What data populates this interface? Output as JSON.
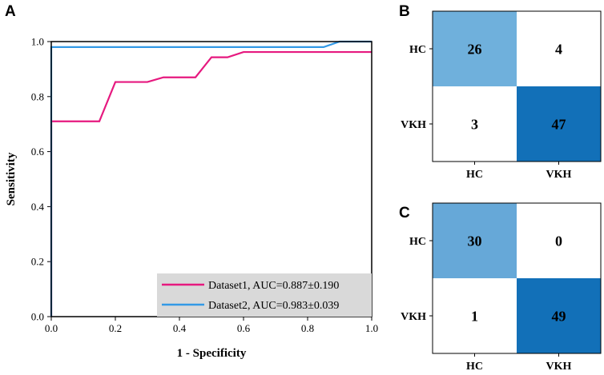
{
  "panels": {
    "a": "A",
    "b": "B",
    "c": "C"
  },
  "chart_data": [
    {
      "id": "roc",
      "type": "line",
      "title": "",
      "xlabel": "1 - Specificity",
      "ylabel": "Sensitivity",
      "xlim": [
        0,
        1
      ],
      "ylim": [
        0,
        1
      ],
      "xticks": [
        "0.0",
        "0.2",
        "0.4",
        "0.6",
        "0.8",
        "1.0"
      ],
      "yticks": [
        "0.0",
        "0.2",
        "0.4",
        "0.6",
        "0.8",
        "1.0"
      ],
      "legend_position": "bottom-right",
      "series": [
        {
          "name": "Dataset1, AUC=0.887±0.190",
          "color": "#e6197f",
          "points": [
            [
              0,
              0
            ],
            [
              0,
              0.71
            ],
            [
              0.15,
              0.71
            ],
            [
              0.2,
              0.853
            ],
            [
              0.3,
              0.853
            ],
            [
              0.35,
              0.87
            ],
            [
              0.45,
              0.87
            ],
            [
              0.5,
              0.943
            ],
            [
              0.55,
              0.943
            ],
            [
              0.6,
              0.962
            ],
            [
              1.0,
              0.962
            ]
          ]
        },
        {
          "name": "Dataset2, AUC=0.983±0.039",
          "color": "#3399e6",
          "points": [
            [
              0,
              0
            ],
            [
              0,
              0.98
            ],
            [
              0.85,
              0.98
            ],
            [
              0.9,
              1.0
            ],
            [
              1.0,
              1.0
            ]
          ]
        }
      ]
    },
    {
      "id": "cm-b",
      "type": "heatmap",
      "row_labels": [
        "HC",
        "VKH"
      ],
      "col_labels": [
        "HC",
        "VKH"
      ],
      "values": [
        [
          26,
          4
        ],
        [
          3,
          47
        ]
      ],
      "colors": [
        [
          "#6fb0dc",
          "#ffffff"
        ],
        [
          "#ffffff",
          "#1270b8"
        ]
      ]
    },
    {
      "id": "cm-c",
      "type": "heatmap",
      "row_labels": [
        "HC",
        "VKH"
      ],
      "col_labels": [
        "HC",
        "VKH"
      ],
      "values": [
        [
          30,
          0
        ],
        [
          1,
          49
        ]
      ],
      "colors": [
        [
          "#66a8d8",
          "#ffffff"
        ],
        [
          "#ffffff",
          "#1270b8"
        ]
      ]
    }
  ]
}
